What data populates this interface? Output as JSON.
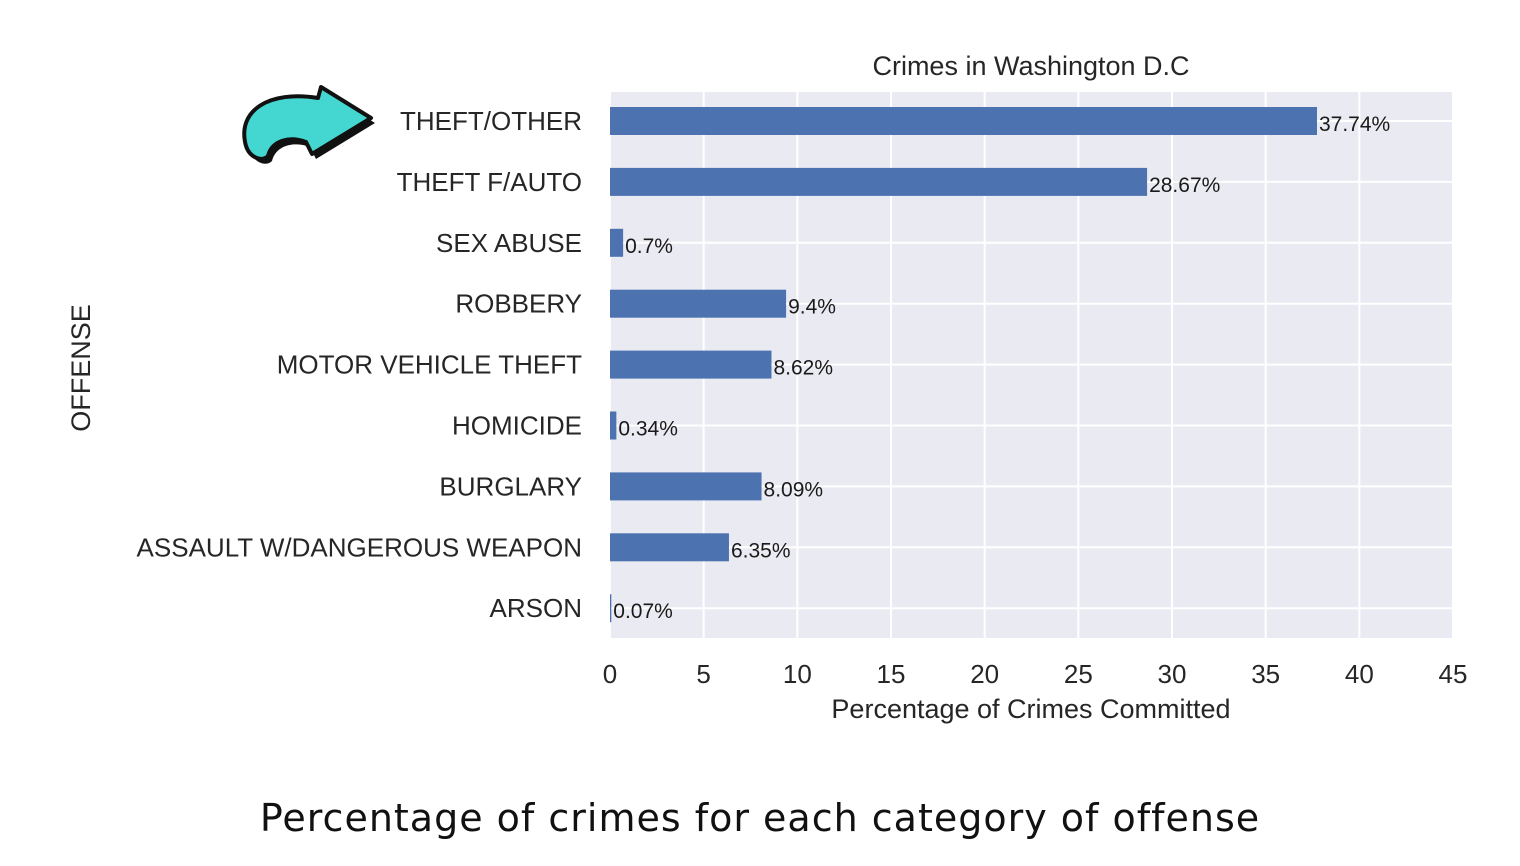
{
  "caption": "Percentage of crimes for each category of offense",
  "chart_data": {
    "type": "bar",
    "orientation": "horizontal",
    "title": "Crimes in Washington D.C",
    "xlabel": "Percentage of Crimes Committed",
    "ylabel": "OFFENSE",
    "xlim": [
      0,
      45
    ],
    "xticks": [
      "0",
      "5",
      "10",
      "15",
      "20",
      "25",
      "30",
      "35",
      "40",
      "45"
    ],
    "grid": true,
    "categories": [
      "THEFT/OTHER",
      "THEFT F/AUTO",
      "SEX ABUSE",
      "ROBBERY",
      "MOTOR VEHICLE THEFT",
      "HOMICIDE",
      "BURGLARY",
      "ASSAULT W/DANGEROUS WEAPON",
      "ARSON"
    ],
    "values": [
      37.74,
      28.67,
      0.7,
      9.4,
      8.62,
      0.34,
      8.09,
      6.35,
      0.07
    ],
    "data_labels": [
      "37.74%",
      "28.67%",
      "0.7%",
      "9.4%",
      "8.62%",
      "0.34%",
      "8.09%",
      "6.35%",
      "0.07%"
    ],
    "highlighted_category": "THEFT/OTHER",
    "colors": {
      "bar": "#4c72b0",
      "plot_background": "#eaeaf2",
      "grid": "#ffffff",
      "arrow_fill": "#44d7d1",
      "arrow_outline": "#111111"
    }
  }
}
